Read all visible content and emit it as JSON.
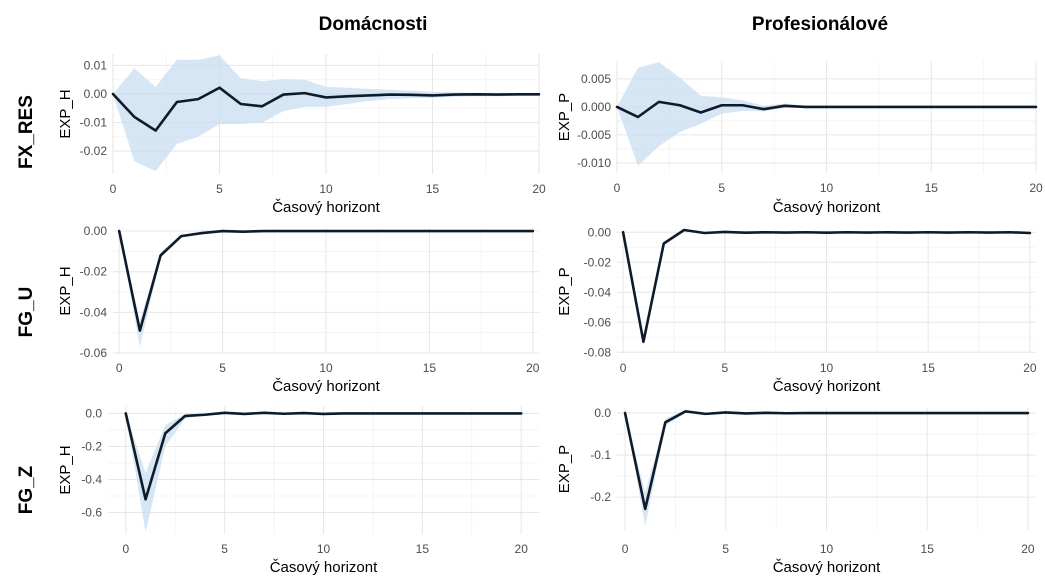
{
  "columns": [
    "Domácnosti",
    "Profesionálové"
  ],
  "rows": [
    "FX_RES",
    "FG_U",
    "FG_Z"
  ],
  "chart_data": [
    {
      "type": "line",
      "row": "FX_RES",
      "column": "Domácnosti",
      "xlabel": "Časový horizont",
      "ylabel": "EXP_H",
      "xlim": [
        0,
        20
      ],
      "ylim": [
        -0.028,
        0.014
      ],
      "x_ticks": [
        0,
        5,
        10,
        15,
        20
      ],
      "x_tick_labels": [
        "0",
        "5",
        "10",
        "15",
        "20"
      ],
      "y_ticks": [
        0.01,
        0.0,
        -0.01,
        -0.02
      ],
      "y_tick_labels": [
        "0.01",
        "0.00",
        "-0.01",
        "-0.02"
      ],
      "x": [
        0,
        1,
        2,
        3,
        4,
        5,
        6,
        7,
        8,
        9,
        10,
        11,
        12,
        13,
        14,
        15,
        16,
        17,
        18,
        19,
        20
      ],
      "values": [
        0.0,
        -0.008,
        -0.0128,
        -0.0028,
        -0.0018,
        0.0022,
        -0.0035,
        -0.0043,
        -0.0002,
        0.0003,
        -0.0012,
        -0.0008,
        -0.0005,
        -0.0002,
        -0.0003,
        -0.0005,
        -0.0002,
        -0.0001,
        -0.0002,
        -0.0001,
        -0.0001
      ],
      "lower": [
        0.0,
        -0.0235,
        -0.027,
        -0.0175,
        -0.015,
        -0.0105,
        -0.0105,
        -0.01,
        -0.006,
        -0.0045,
        -0.0045,
        -0.0035,
        -0.0025,
        -0.0018,
        -0.0015,
        -0.0013,
        -0.001,
        -0.0008,
        -0.0008,
        -0.0006,
        -0.0006
      ],
      "upper": [
        0.0,
        0.009,
        0.0025,
        0.012,
        0.012,
        0.0135,
        0.0055,
        0.0045,
        0.0052,
        0.005,
        0.0025,
        0.0022,
        0.0018,
        0.0015,
        0.0012,
        0.0008,
        0.0006,
        0.0005,
        0.0004,
        0.0004,
        0.0004
      ]
    },
    {
      "type": "line",
      "row": "FX_RES",
      "column": "Profesionálové",
      "xlabel": "Časový horizont",
      "ylabel": "EXP_P",
      "xlim": [
        0,
        20
      ],
      "ylim": [
        -0.0118,
        0.0082
      ],
      "x_ticks": [
        0,
        5,
        10,
        15,
        20
      ],
      "x_tick_labels": [
        "0",
        "5",
        "10",
        "15",
        "20"
      ],
      "y_ticks": [
        0.005,
        0.0,
        -0.005,
        -0.01
      ],
      "y_tick_labels": [
        "0.005",
        "0.000",
        "-0.005",
        "-0.010"
      ],
      "x": [
        0,
        1,
        2,
        3,
        4,
        5,
        6,
        7,
        8,
        9,
        10,
        11,
        12,
        13,
        14,
        15,
        16,
        17,
        18,
        19,
        20
      ],
      "values": [
        0.0,
        -0.0018,
        0.0009,
        0.0003,
        -0.001,
        0.0003,
        0.0003,
        -0.0004,
        0.0002,
        0.0,
        0.0,
        0.0,
        0.0,
        0.0,
        0.0,
        0.0,
        0.0,
        0.0,
        0.0,
        0.0,
        0.0
      ],
      "lower": [
        0.0,
        -0.0105,
        -0.007,
        -0.0045,
        -0.003,
        -0.0012,
        -0.0007,
        -0.0008,
        -0.0002,
        -0.0001,
        -0.0001,
        0.0,
        0.0,
        0.0,
        0.0,
        0.0,
        0.0,
        0.0,
        0.0,
        0.0,
        0.0
      ],
      "upper": [
        0.0,
        0.007,
        0.008,
        0.0052,
        0.002,
        0.0017,
        0.0012,
        0.0002,
        0.0006,
        0.0002,
        0.0001,
        0.0,
        0.0,
        0.0,
        0.0,
        0.0,
        0.0,
        0.0,
        0.0,
        0.0,
        0.0
      ]
    },
    {
      "type": "line",
      "row": "FG_U",
      "column": "Domácnosti",
      "xlabel": "Časový horizont",
      "ylabel": "EXP_H",
      "xlim": [
        -0.3,
        20.3
      ],
      "ylim": [
        -0.0605,
        0.0015
      ],
      "x_ticks": [
        0,
        5,
        10,
        15,
        20
      ],
      "x_tick_labels": [
        "0",
        "5",
        "10",
        "15",
        "20"
      ],
      "y_ticks": [
        0.0,
        -0.02,
        -0.04,
        -0.06
      ],
      "y_tick_labels": [
        "0.00",
        "-0.02",
        "-0.04",
        "-0.06"
      ],
      "x": [
        0,
        1,
        2,
        3,
        4,
        5,
        6,
        7,
        8,
        9,
        10,
        11,
        12,
        13,
        14,
        15,
        16,
        17,
        18,
        19,
        20
      ],
      "values": [
        0.0,
        -0.049,
        -0.012,
        -0.0025,
        -0.001,
        0.0,
        -0.0003,
        0.0,
        0.0,
        0.0,
        0.0,
        0.0,
        0.0,
        0.0,
        0.0,
        0.0,
        0.0,
        0.0,
        0.0,
        0.0,
        0.0
      ],
      "lower": [
        0.0,
        -0.057,
        -0.0135,
        -0.003,
        -0.0014,
        -0.0003,
        -0.0005,
        -0.0001,
        0.0,
        0.0,
        0.0,
        0.0,
        0.0,
        0.0,
        0.0,
        0.0,
        0.0,
        0.0,
        0.0,
        0.0,
        0.0
      ],
      "upper": [
        0.0,
        -0.044,
        -0.0105,
        -0.002,
        -0.0006,
        0.0002,
        -0.0001,
        0.0001,
        0.0,
        0.0,
        0.0,
        0.0,
        0.0,
        0.0,
        0.0,
        0.0,
        0.0,
        0.0,
        0.0,
        0.0,
        0.0
      ]
    },
    {
      "type": "line",
      "row": "FG_U",
      "column": "Profesionálové",
      "xlabel": "Časový horizont",
      "ylabel": "EXP_P",
      "xlim": [
        -0.3,
        20.3
      ],
      "ylim": [
        -0.0805,
        0.0015
      ],
      "x_ticks": [
        0,
        5,
        10,
        15,
        20
      ],
      "x_tick_labels": [
        "0",
        "5",
        "10",
        "15",
        "20"
      ],
      "y_ticks": [
        0.0,
        -0.02,
        -0.04,
        -0.06,
        -0.08
      ],
      "y_tick_labels": [
        "0.00",
        "-0.02",
        "-0.04",
        "-0.06",
        "-0.08"
      ],
      "x": [
        0,
        1,
        2,
        3,
        4,
        5,
        6,
        7,
        8,
        9,
        10,
        11,
        12,
        13,
        14,
        15,
        16,
        17,
        18,
        19,
        20
      ],
      "values": [
        0.0,
        -0.073,
        -0.0075,
        0.0015,
        -0.0005,
        0.0002,
        -0.0003,
        0.0,
        -0.0002,
        0.0,
        -0.0003,
        0.0,
        -0.0002,
        0.0,
        -0.0002,
        0.0,
        -0.0002,
        0.0,
        -0.0002,
        0.0,
        -0.0005
      ],
      "lower": [
        0.0,
        -0.0755,
        -0.008,
        0.0011,
        -0.0008,
        0.0,
        -0.0005,
        -0.0002,
        -0.0004,
        -0.0002,
        -0.0005,
        -0.0002,
        -0.0004,
        -0.0002,
        -0.0004,
        -0.0002,
        -0.0004,
        -0.0002,
        -0.0004,
        -0.0002,
        -0.0007
      ],
      "upper": [
        0.0,
        -0.0705,
        -0.007,
        0.0019,
        -0.0002,
        0.0004,
        -0.0001,
        0.0002,
        0.0,
        0.0002,
        -0.0001,
        0.0002,
        0.0,
        0.0002,
        0.0,
        0.0002,
        0.0,
        0.0002,
        0.0,
        0.0002,
        -0.0003
      ]
    },
    {
      "type": "line",
      "row": "FG_Z",
      "column": "Domácnosti",
      "xlabel": "Časový horizont",
      "ylabel": "EXP_H",
      "xlim": [
        -0.9,
        20.9
      ],
      "ylim": [
        -0.73,
        0.045
      ],
      "x_ticks": [
        0,
        5,
        10,
        15,
        20
      ],
      "x_tick_labels": [
        "0",
        "5",
        "10",
        "15",
        "20"
      ],
      "y_ticks": [
        0.0,
        -0.2,
        -0.4,
        -0.6
      ],
      "y_tick_labels": [
        "0.0",
        "-0.2",
        "-0.4",
        "-0.6"
      ],
      "x": [
        0,
        1,
        2,
        3,
        4,
        5,
        6,
        7,
        8,
        9,
        10,
        11,
        12,
        13,
        14,
        15,
        16,
        17,
        18,
        19,
        20
      ],
      "values": [
        0.0,
        -0.52,
        -0.12,
        -0.015,
        -0.008,
        0.004,
        -0.003,
        0.004,
        -0.002,
        0.002,
        -0.003,
        0.0,
        0.0,
        0.0,
        0.0,
        0.0,
        0.0,
        0.0,
        0.0,
        0.0,
        0.0
      ],
      "lower": [
        0.0,
        -0.72,
        -0.2,
        -0.03,
        -0.015,
        0.0,
        -0.008,
        0.0,
        -0.005,
        0.0,
        -0.005,
        0.0,
        0.0,
        0.0,
        0.0,
        0.0,
        0.0,
        0.0,
        0.0,
        0.0,
        0.0
      ],
      "upper": [
        0.0,
        -0.36,
        -0.07,
        -0.005,
        -0.002,
        0.008,
        0.001,
        0.007,
        0.001,
        0.004,
        0.0,
        0.0,
        0.0,
        0.0,
        0.0,
        0.0,
        0.0,
        0.0,
        0.0,
        0.0,
        0.0
      ]
    },
    {
      "type": "line",
      "row": "FG_Z",
      "column": "Profesionálové",
      "xlabel": "Časový horizont",
      "ylabel": "EXP_P",
      "xlim": [
        -0.4,
        20.4
      ],
      "ylim": [
        -0.278,
        0.012
      ],
      "x_ticks": [
        0,
        5,
        10,
        15,
        20
      ],
      "x_tick_labels": [
        "0",
        "5",
        "10",
        "15",
        "20"
      ],
      "y_ticks": [
        0.0,
        -0.1,
        -0.2
      ],
      "y_tick_labels": [
        "0.0",
        "-0.1",
        "-0.2"
      ],
      "x": [
        0,
        1,
        2,
        3,
        4,
        5,
        6,
        7,
        8,
        9,
        10,
        11,
        12,
        13,
        14,
        15,
        16,
        17,
        18,
        19,
        20
      ],
      "values": [
        0.0,
        -0.228,
        -0.022,
        0.004,
        -0.002,
        0.0015,
        -0.001,
        0.0005,
        -0.0005,
        0.0,
        0.0,
        0.0,
        0.0,
        0.0,
        0.0,
        0.0,
        0.0,
        0.0,
        0.0,
        0.0,
        0.0
      ],
      "lower": [
        0.0,
        -0.27,
        -0.03,
        0.0,
        -0.005,
        -0.001,
        -0.003,
        -0.001,
        -0.0015,
        0.0,
        0.0,
        0.0,
        0.0,
        0.0,
        0.0,
        0.0,
        0.0,
        0.0,
        0.0,
        0.0,
        0.0
      ],
      "upper": [
        0.0,
        -0.19,
        -0.014,
        0.008,
        0.001,
        0.003,
        0.001,
        0.002,
        0.0005,
        0.0,
        0.0,
        0.0,
        0.0,
        0.0,
        0.0,
        0.0,
        0.0,
        0.0,
        0.0,
        0.0,
        0.0
      ]
    }
  ]
}
